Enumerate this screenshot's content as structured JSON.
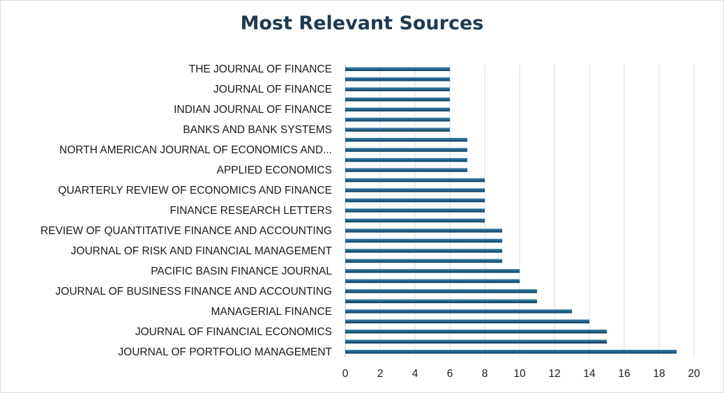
{
  "chart_data": {
    "type": "bar",
    "orientation": "horizontal",
    "title": "Most Relevant Sources",
    "xlabel": "",
    "ylabel": "",
    "xlim": [
      0,
      20
    ],
    "x_ticks": [
      0,
      2,
      4,
      6,
      8,
      10,
      12,
      14,
      16,
      18,
      20
    ],
    "grid": "vertical",
    "legend": "none",
    "bar_color": "#1f5f86",
    "categories": [
      "JOURNAL OF PORTFOLIO MANAGEMENT",
      "",
      "JOURNAL OF FINANCIAL ECONOMICS",
      "",
      "MANAGERIAL FINANCE",
      "",
      "JOURNAL OF BUSINESS FINANCE AND ACCOUNTING",
      "",
      "PACIFIC BASIN FINANCE JOURNAL",
      "",
      "JOURNAL OF RISK AND FINANCIAL MANAGEMENT",
      "",
      "REVIEW OF QUANTITATIVE FINANCE AND ACCOUNTING",
      "",
      "FINANCE RESEARCH LETTERS",
      "",
      "QUARTERLY REVIEW OF ECONOMICS AND FINANCE",
      "",
      "APPLIED ECONOMICS",
      "",
      "NORTH AMERICAN JOURNAL OF ECONOMICS AND...",
      "",
      "BANKS AND BANK SYSTEMS",
      "",
      "INDIAN JOURNAL OF FINANCE",
      "",
      "JOURNAL OF FINANCE",
      "",
      "THE JOURNAL OF FINANCE"
    ],
    "values": [
      19,
      15,
      15,
      14,
      13,
      11,
      11,
      10,
      10,
      9,
      9,
      9,
      9,
      8,
      8,
      8,
      8,
      8,
      7,
      7,
      7,
      7,
      6,
      6,
      6,
      6,
      6,
      6,
      6
    ]
  }
}
